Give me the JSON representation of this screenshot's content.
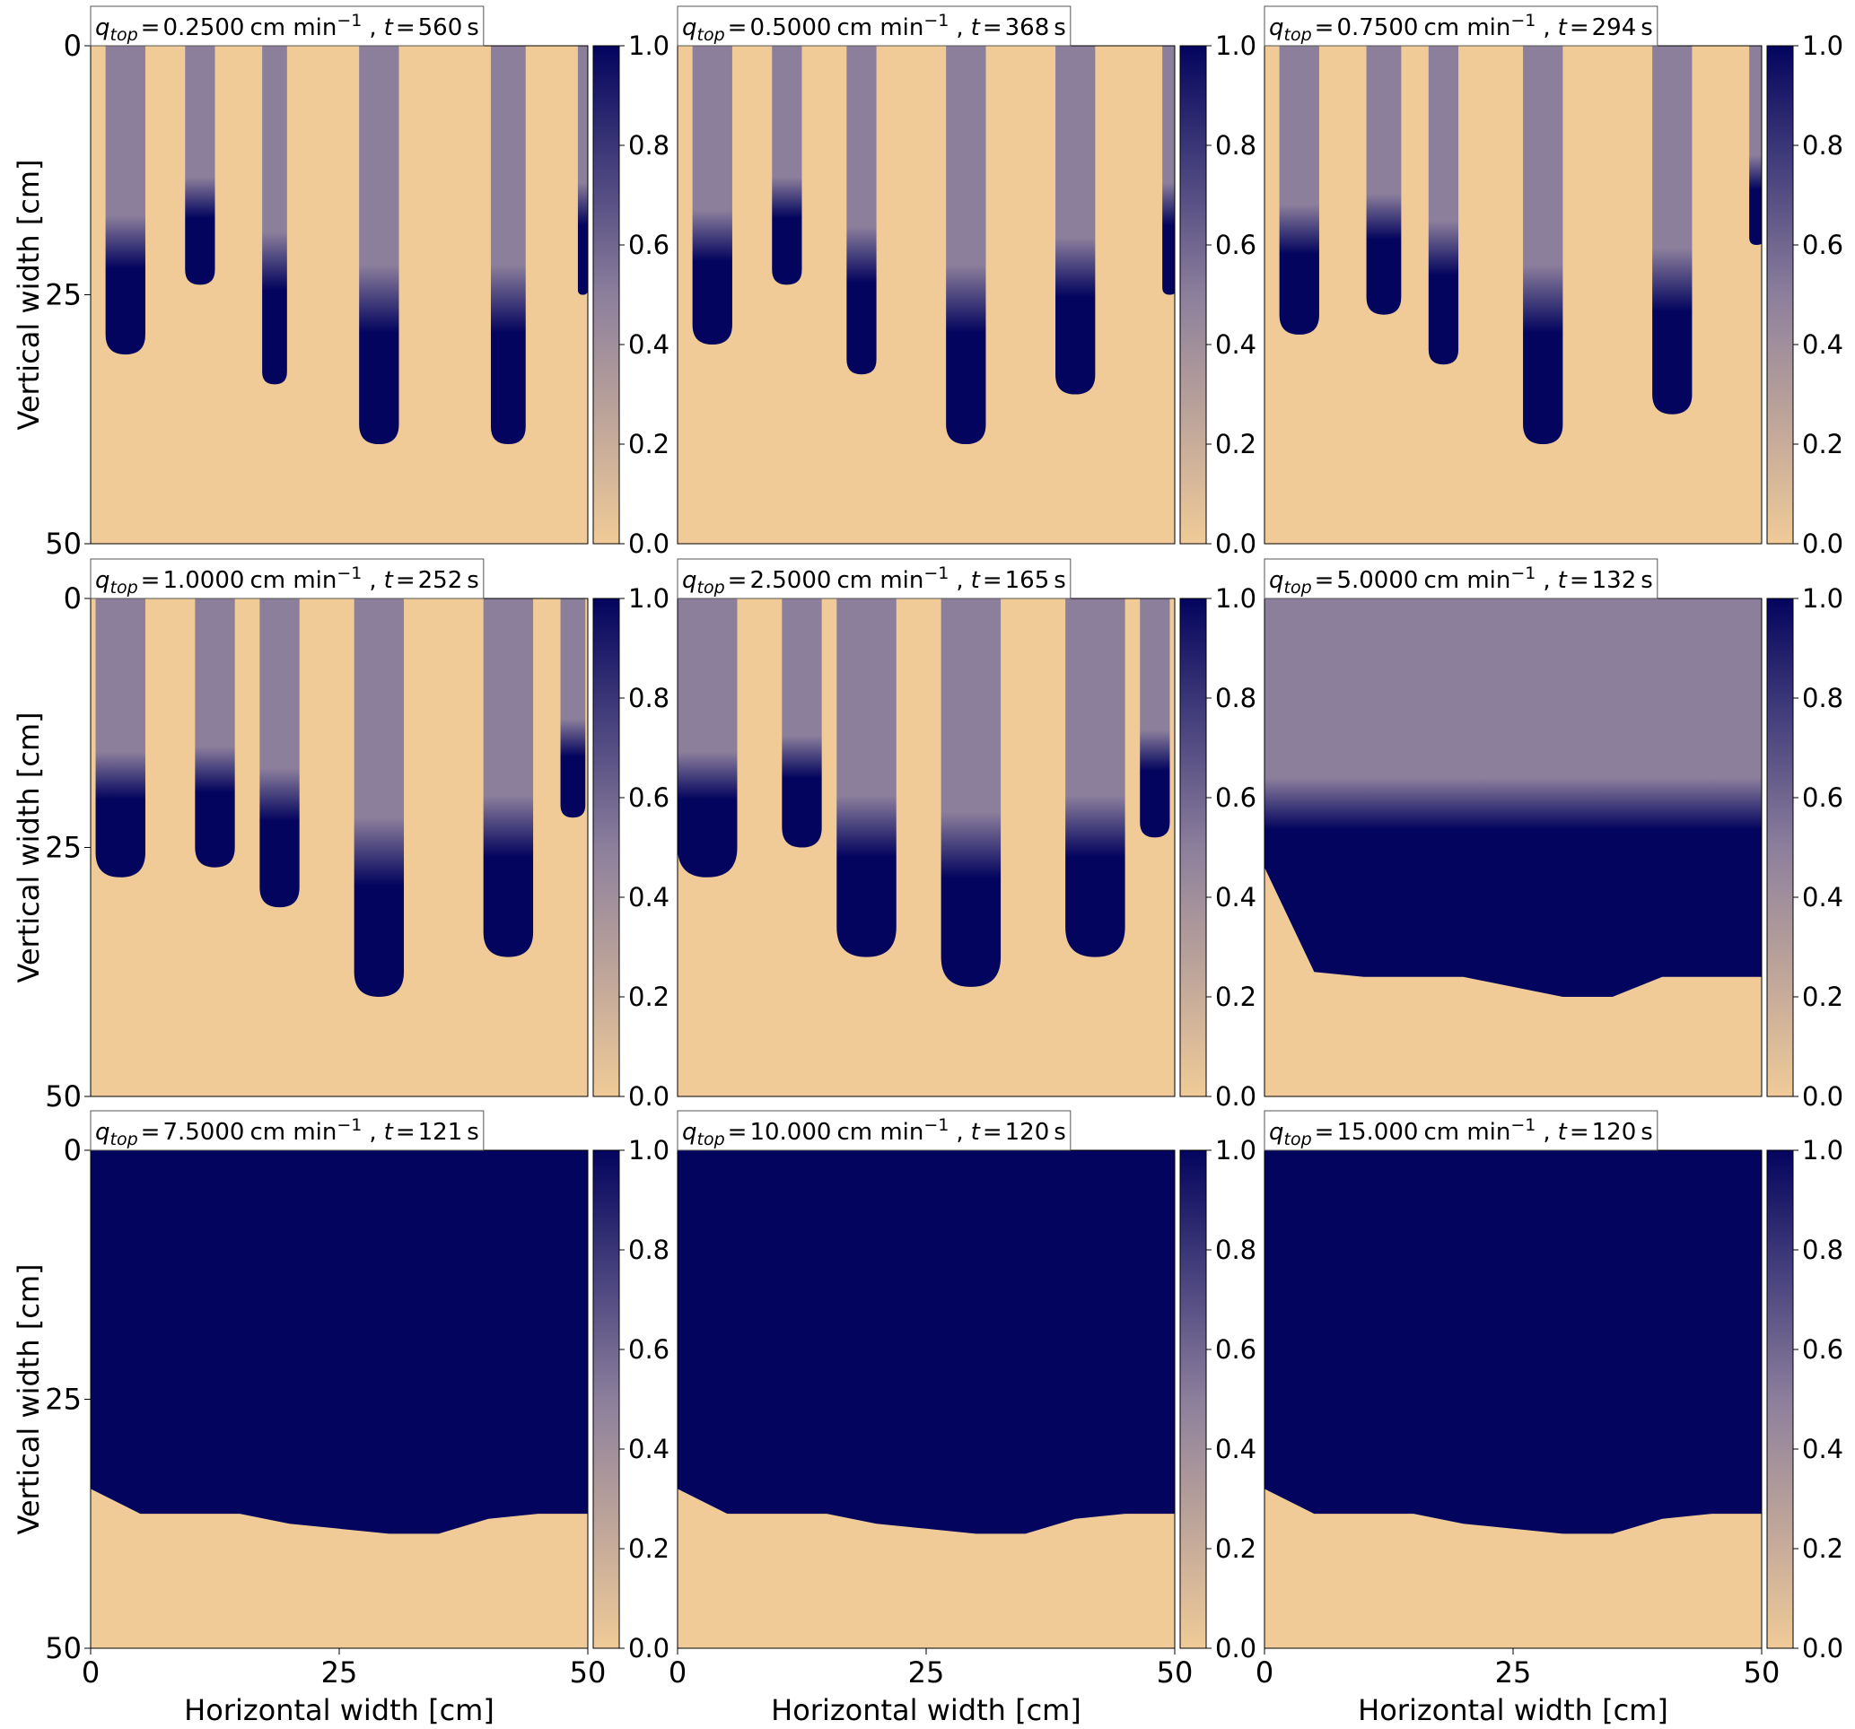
{
  "chart_data": [
    {
      "type": "heatmap",
      "title": {
        "q_symbol": "q",
        "q_sub": "top",
        "eq": "=",
        "q": {
          "value": 0.25,
          "label": "0.2500"
        },
        "unit": "cm min",
        "unit_exp": "−1",
        "sep": ",",
        "t_symbol": "t",
        "eq2": "=",
        "t": 560,
        "t_unit": "s"
      },
      "xlim": [
        0,
        50
      ],
      "ylim": [
        50,
        0
      ],
      "yticks": [
        0,
        25,
        50
      ],
      "ylabel": "Vertical width [cm]",
      "cmap": [
        "#f0cb98",
        "#8c7f9c",
        "#03045e"
      ],
      "clim": [
        0,
        1
      ],
      "cticks": [
        {
          "value": 0,
          "label": "0.0"
        },
        {
          "value": 0.2,
          "label": "0.2"
        },
        {
          "value": 0.4,
          "label": "0.4"
        },
        {
          "value": 0.6,
          "label": "0.6"
        },
        {
          "value": 0.8,
          "label": "0.8"
        },
        {
          "value": 1,
          "label": "1.0"
        }
      ],
      "fingers": [
        {
          "x": 3.5,
          "width": 4,
          "depth": 31
        },
        {
          "x": 11,
          "width": 3,
          "depth": 24
        },
        {
          "x": 18.5,
          "width": 2.5,
          "depth": 34
        },
        {
          "x": 29,
          "width": 4,
          "depth": 40
        },
        {
          "x": 42,
          "width": 3.5,
          "depth": 40
        },
        {
          "x": 49.5,
          "width": 1,
          "depth": 25
        }
      ]
    },
    {
      "type": "heatmap",
      "title": {
        "q_symbol": "q",
        "q_sub": "top",
        "eq": "=",
        "q": {
          "value": 0.5,
          "label": "0.5000"
        },
        "unit": "cm min",
        "unit_exp": "−1",
        "sep": ",",
        "t_symbol": "t",
        "eq2": "=",
        "t": 368,
        "t_unit": "s"
      },
      "xlim": [
        0,
        50
      ],
      "ylim": [
        50,
        0
      ],
      "cmap": [
        "#f0cb98",
        "#8c7f9c",
        "#03045e"
      ],
      "clim": [
        0,
        1
      ],
      "cticks": [
        {
          "value": 0,
          "label": "0.0"
        },
        {
          "value": 0.2,
          "label": "0.2"
        },
        {
          "value": 0.4,
          "label": "0.4"
        },
        {
          "value": 0.6,
          "label": "0.6"
        },
        {
          "value": 0.8,
          "label": "0.8"
        },
        {
          "value": 1,
          "label": "1.0"
        }
      ],
      "fingers": [
        {
          "x": 3.5,
          "width": 4,
          "depth": 30
        },
        {
          "x": 11,
          "width": 3,
          "depth": 24
        },
        {
          "x": 18.5,
          "width": 3,
          "depth": 33
        },
        {
          "x": 29,
          "width": 4,
          "depth": 40
        },
        {
          "x": 40,
          "width": 4,
          "depth": 35
        },
        {
          "x": 49.5,
          "width": 1.5,
          "depth": 25
        }
      ]
    },
    {
      "type": "heatmap",
      "title": {
        "q_symbol": "q",
        "q_sub": "top",
        "eq": "=",
        "q": {
          "value": 0.75,
          "label": "0.7500"
        },
        "unit": "cm min",
        "unit_exp": "−1",
        "sep": ",",
        "t_symbol": "t",
        "eq2": "=",
        "t": 294,
        "t_unit": "s"
      },
      "xlim": [
        0,
        50
      ],
      "ylim": [
        50,
        0
      ],
      "cmap": [
        "#f0cb98",
        "#8c7f9c",
        "#03045e"
      ],
      "clim": [
        0,
        1
      ],
      "cticks": [
        {
          "value": 0,
          "label": "0.0"
        },
        {
          "value": 0.2,
          "label": "0.2"
        },
        {
          "value": 0.4,
          "label": "0.4"
        },
        {
          "value": 0.6,
          "label": "0.6"
        },
        {
          "value": 0.8,
          "label": "0.8"
        },
        {
          "value": 1,
          "label": "1.0"
        }
      ],
      "fingers": [
        {
          "x": 3.5,
          "width": 4,
          "depth": 29
        },
        {
          "x": 12,
          "width": 3.5,
          "depth": 27
        },
        {
          "x": 18,
          "width": 3,
          "depth": 32
        },
        {
          "x": 28,
          "width": 4,
          "depth": 40
        },
        {
          "x": 41,
          "width": 4,
          "depth": 37
        },
        {
          "x": 49.5,
          "width": 1.5,
          "depth": 20
        }
      ]
    },
    {
      "type": "heatmap",
      "title": {
        "q_symbol": "q",
        "q_sub": "top",
        "eq": "=",
        "q": {
          "value": 1,
          "label": "1.0000"
        },
        "unit": "cm min",
        "unit_exp": "−1",
        "sep": ",",
        "t_symbol": "t",
        "eq2": "=",
        "t": 252,
        "t_unit": "s"
      },
      "xlim": [
        0,
        50
      ],
      "ylim": [
        50,
        0
      ],
      "yticks": [
        0,
        25,
        50
      ],
      "ylabel": "Vertical width [cm]",
      "cmap": [
        "#f0cb98",
        "#8c7f9c",
        "#03045e"
      ],
      "clim": [
        0,
        1
      ],
      "cticks": [
        {
          "value": 0,
          "label": "0.0"
        },
        {
          "value": 0.2,
          "label": "0.2"
        },
        {
          "value": 0.4,
          "label": "0.4"
        },
        {
          "value": 0.6,
          "label": "0.6"
        },
        {
          "value": 0.8,
          "label": "0.8"
        },
        {
          "value": 1,
          "label": "1.0"
        }
      ],
      "fingers": [
        {
          "x": 3,
          "width": 5,
          "depth": 28
        },
        {
          "x": 12.5,
          "width": 4,
          "depth": 27
        },
        {
          "x": 19,
          "width": 4,
          "depth": 31
        },
        {
          "x": 29,
          "width": 5,
          "depth": 40
        },
        {
          "x": 42,
          "width": 5,
          "depth": 36
        },
        {
          "x": 48.5,
          "width": 2.5,
          "depth": 22
        }
      ]
    },
    {
      "type": "heatmap",
      "title": {
        "q_symbol": "q",
        "q_sub": "top",
        "eq": "=",
        "q": {
          "value": 2.5,
          "label": "2.5000"
        },
        "unit": "cm min",
        "unit_exp": "−1",
        "sep": ",",
        "t_symbol": "t",
        "eq2": "=",
        "t": 165,
        "t_unit": "s"
      },
      "xlim": [
        0,
        50
      ],
      "ylim": [
        50,
        0
      ],
      "cmap": [
        "#f0cb98",
        "#8c7f9c",
        "#03045e"
      ],
      "clim": [
        0,
        1
      ],
      "cticks": [
        {
          "value": 0,
          "label": "0.0"
        },
        {
          "value": 0.2,
          "label": "0.2"
        },
        {
          "value": 0.4,
          "label": "0.4"
        },
        {
          "value": 0.6,
          "label": "0.6"
        },
        {
          "value": 0.8,
          "label": "0.8"
        },
        {
          "value": 1,
          "label": "1.0"
        }
      ],
      "fingers": [
        {
          "x": 3,
          "width": 6,
          "depth": 28
        },
        {
          "x": 12.5,
          "width": 4,
          "depth": 25
        },
        {
          "x": 19,
          "width": 6,
          "depth": 36
        },
        {
          "x": 29.5,
          "width": 6,
          "depth": 39
        },
        {
          "x": 42,
          "width": 6,
          "depth": 36
        },
        {
          "x": 48,
          "width": 3,
          "depth": 24
        }
      ]
    },
    {
      "type": "heatmap",
      "title": {
        "q_symbol": "q",
        "q_sub": "top",
        "eq": "=",
        "q": {
          "value": 5,
          "label": "5.0000"
        },
        "unit": "cm min",
        "unit_exp": "−1",
        "sep": ",",
        "t_symbol": "t",
        "eq2": "=",
        "t": 132,
        "t_unit": "s"
      },
      "xlim": [
        0,
        50
      ],
      "ylim": [
        50,
        0
      ],
      "cmap": [
        "#f0cb98",
        "#8c7f9c",
        "#03045e"
      ],
      "clim": [
        0,
        1
      ],
      "cticks": [
        {
          "value": 0,
          "label": "0.0"
        },
        {
          "value": 0.2,
          "label": "0.2"
        },
        {
          "value": 0.4,
          "label": "0.4"
        },
        {
          "value": 0.6,
          "label": "0.6"
        },
        {
          "value": 0.8,
          "label": "0.8"
        },
        {
          "value": 1,
          "label": "1.0"
        }
      ],
      "front_x": [
        0,
        5,
        10,
        15,
        20,
        25,
        30,
        35,
        40,
        45,
        50
      ],
      "front": [
        27,
        37.5,
        38,
        38,
        38,
        39,
        40,
        40,
        38,
        38,
        38
      ]
    },
    {
      "type": "heatmap",
      "title": {
        "q_symbol": "q",
        "q_sub": "top",
        "eq": "=",
        "q": {
          "value": 7.5,
          "label": "7.5000"
        },
        "unit": "cm min",
        "unit_exp": "−1",
        "sep": ",",
        "t_symbol": "t",
        "eq2": "=",
        "t": 121,
        "t_unit": "s"
      },
      "xlim": [
        0,
        50
      ],
      "ylim": [
        50,
        0
      ],
      "xticks": [
        0,
        25,
        50
      ],
      "yticks": [
        0,
        25,
        50
      ],
      "xlabel": "Horizontal width [cm]",
      "ylabel": "Vertical width [cm]",
      "cmap": [
        "#f0cb98",
        "#8c7f9c",
        "#03045e"
      ],
      "clim": [
        0,
        1
      ],
      "cticks": [
        {
          "value": 0,
          "label": "0.0"
        },
        {
          "value": 0.2,
          "label": "0.2"
        },
        {
          "value": 0.4,
          "label": "0.4"
        },
        {
          "value": 0.6,
          "label": "0.6"
        },
        {
          "value": 0.8,
          "label": "0.8"
        },
        {
          "value": 1,
          "label": "1.0"
        }
      ],
      "front_x": [
        0,
        5,
        10,
        15,
        20,
        25,
        30,
        35,
        40,
        45,
        50
      ],
      "front": [
        34,
        36.5,
        36.5,
        36.5,
        37.5,
        38,
        38.5,
        38.5,
        37,
        36.5,
        36.5
      ]
    },
    {
      "type": "heatmap",
      "title": {
        "q_symbol": "q",
        "q_sub": "top",
        "eq": "=",
        "q": {
          "value": 10,
          "label": "10.000"
        },
        "unit": "cm min",
        "unit_exp": "−1",
        "sep": ",",
        "t_symbol": "t",
        "eq2": "=",
        "t": 120,
        "t_unit": "s"
      },
      "xlim": [
        0,
        50
      ],
      "ylim": [
        50,
        0
      ],
      "xticks": [
        0,
        25,
        50
      ],
      "xlabel": "Horizontal width [cm]",
      "cmap": [
        "#f0cb98",
        "#8c7f9c",
        "#03045e"
      ],
      "clim": [
        0,
        1
      ],
      "cticks": [
        {
          "value": 0,
          "label": "0.0"
        },
        {
          "value": 0.2,
          "label": "0.2"
        },
        {
          "value": 0.4,
          "label": "0.4"
        },
        {
          "value": 0.6,
          "label": "0.6"
        },
        {
          "value": 0.8,
          "label": "0.8"
        },
        {
          "value": 1,
          "label": "1.0"
        }
      ],
      "front_x": [
        0,
        5,
        10,
        15,
        20,
        25,
        30,
        35,
        40,
        45,
        50
      ],
      "front": [
        34,
        36.5,
        36.5,
        36.5,
        37.5,
        38,
        38.5,
        38.5,
        37,
        36.5,
        36.5
      ]
    },
    {
      "type": "heatmap",
      "title": {
        "q_symbol": "q",
        "q_sub": "top",
        "eq": "=",
        "q": {
          "value": 15,
          "label": "15.000"
        },
        "unit": "cm min",
        "unit_exp": "−1",
        "sep": ",",
        "t_symbol": "t",
        "eq2": "=",
        "t": 120,
        "t_unit": "s"
      },
      "xlim": [
        0,
        50
      ],
      "ylim": [
        50,
        0
      ],
      "xticks": [
        0,
        25,
        50
      ],
      "xlabel": "Horizontal width [cm]",
      "cmap": [
        "#f0cb98",
        "#8c7f9c",
        "#03045e"
      ],
      "clim": [
        0,
        1
      ],
      "cticks": [
        {
          "value": 0,
          "label": "0.0"
        },
        {
          "value": 0.2,
          "label": "0.2"
        },
        {
          "value": 0.4,
          "label": "0.4"
        },
        {
          "value": 0.6,
          "label": "0.6"
        },
        {
          "value": 0.8,
          "label": "0.8"
        },
        {
          "value": 1,
          "label": "1.0"
        }
      ],
      "front_x": [
        0,
        5,
        10,
        15,
        20,
        25,
        30,
        35,
        40,
        45,
        50
      ],
      "front": [
        34,
        36.5,
        36.5,
        36.5,
        37.5,
        38,
        38.5,
        38.5,
        37,
        36.5,
        36.5
      ]
    }
  ]
}
